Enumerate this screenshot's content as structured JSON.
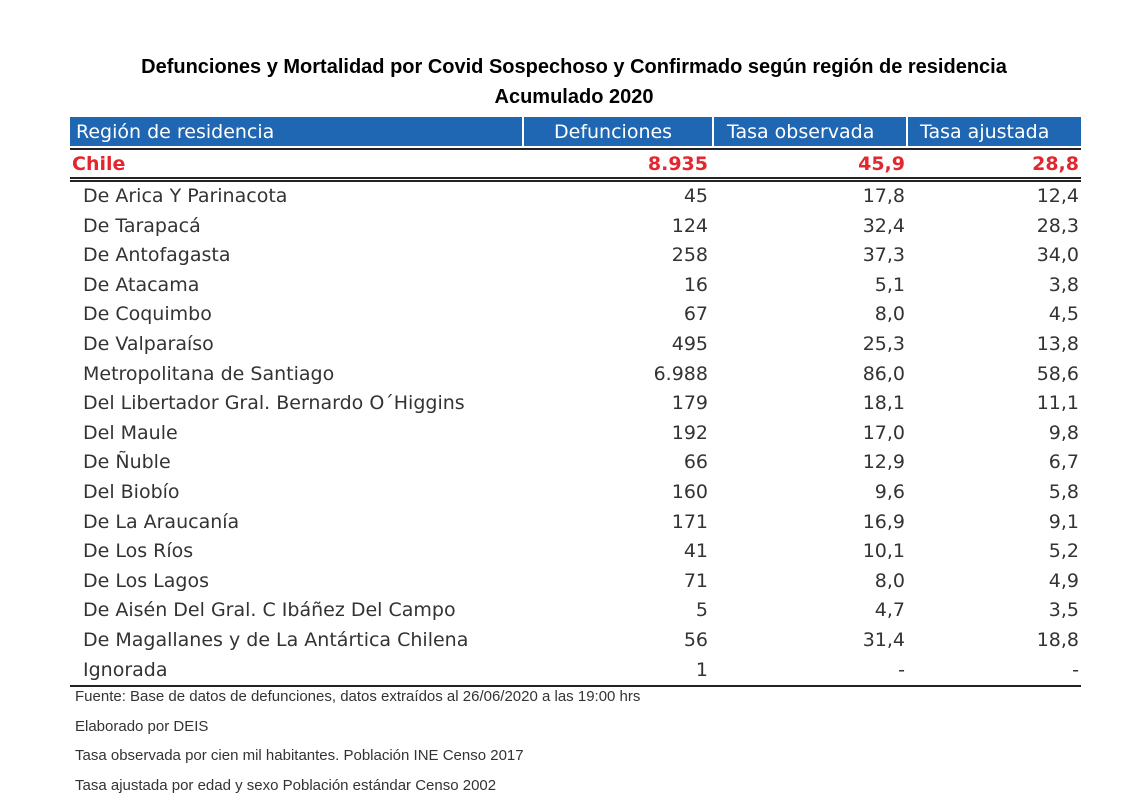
{
  "title": {
    "line1": "Defunciones y Mortalidad por Covid Sospechoso y Confirmado  según región de residencia",
    "line2": "Acumulado 2020"
  },
  "table": {
    "headers": {
      "region": "Región de residencia",
      "defunciones": "Defunciones",
      "tasa_observada": "Tasa observada",
      "tasa_ajustada": "Tasa ajustada"
    },
    "total": {
      "region": "Chile",
      "defunciones": "8.935",
      "tasa_observada": "45,9",
      "tasa_ajustada": "28,8"
    },
    "rows": [
      {
        "region": "De Arica Y Parinacota",
        "defunciones": "45",
        "tasa_observada": "17,8",
        "tasa_ajustada": "12,4"
      },
      {
        "region": "De Tarapacá",
        "defunciones": "124",
        "tasa_observada": "32,4",
        "tasa_ajustada": "28,3"
      },
      {
        "region": "De Antofagasta",
        "defunciones": "258",
        "tasa_observada": "37,3",
        "tasa_ajustada": "34,0"
      },
      {
        "region": "De Atacama",
        "defunciones": "16",
        "tasa_observada": "5,1",
        "tasa_ajustada": "3,8"
      },
      {
        "region": "De Coquimbo",
        "defunciones": "67",
        "tasa_observada": "8,0",
        "tasa_ajustada": "4,5"
      },
      {
        "region": "De Valparaíso",
        "defunciones": "495",
        "tasa_observada": "25,3",
        "tasa_ajustada": "13,8"
      },
      {
        "region": "Metropolitana de Santiago",
        "defunciones": "6.988",
        "tasa_observada": "86,0",
        "tasa_ajustada": "58,6"
      },
      {
        "region": "Del Libertador Gral. Bernardo O´Higgins",
        "defunciones": "179",
        "tasa_observada": "18,1",
        "tasa_ajustada": "11,1"
      },
      {
        "region": "Del Maule",
        "defunciones": "192",
        "tasa_observada": "17,0",
        "tasa_ajustada": "9,8"
      },
      {
        "region": "De Ñuble",
        "defunciones": "66",
        "tasa_observada": "12,9",
        "tasa_ajustada": "6,7"
      },
      {
        "region": "Del Biobío",
        "defunciones": "160",
        "tasa_observada": "9,6",
        "tasa_ajustada": "5,8"
      },
      {
        "region": "De La Araucanía",
        "defunciones": "171",
        "tasa_observada": "16,9",
        "tasa_ajustada": "9,1"
      },
      {
        "region": "De Los Ríos",
        "defunciones": "41",
        "tasa_observada": "10,1",
        "tasa_ajustada": "5,2"
      },
      {
        "region": "De Los Lagos",
        "defunciones": "71",
        "tasa_observada": "8,0",
        "tasa_ajustada": "4,9"
      },
      {
        "region": "De Aisén Del Gral. C Ibáñez Del Campo",
        "defunciones": "5",
        "tasa_observada": "4,7",
        "tasa_ajustada": "3,5"
      },
      {
        "region": "De Magallanes y de La Antártica Chilena",
        "defunciones": "56",
        "tasa_observada": "31,4",
        "tasa_ajustada": "18,8"
      },
      {
        "region": "Ignorada",
        "defunciones": "1",
        "tasa_observada": "-",
        "tasa_ajustada": "-"
      }
    ]
  },
  "notes": [
    "Fuente: Base de datos de defunciones, datos extraídos al 26/06/2020 a las 19:00 hrs",
    "Elaborado por DEIS",
    "Tasa observada por cien mil habitantes. Población INE Censo 2017",
    "Tasa ajustada por edad y sexo Población estándar Censo 2002"
  ],
  "colors": {
    "header_bg": "#1f66b3",
    "total_text": "#e4272f"
  }
}
